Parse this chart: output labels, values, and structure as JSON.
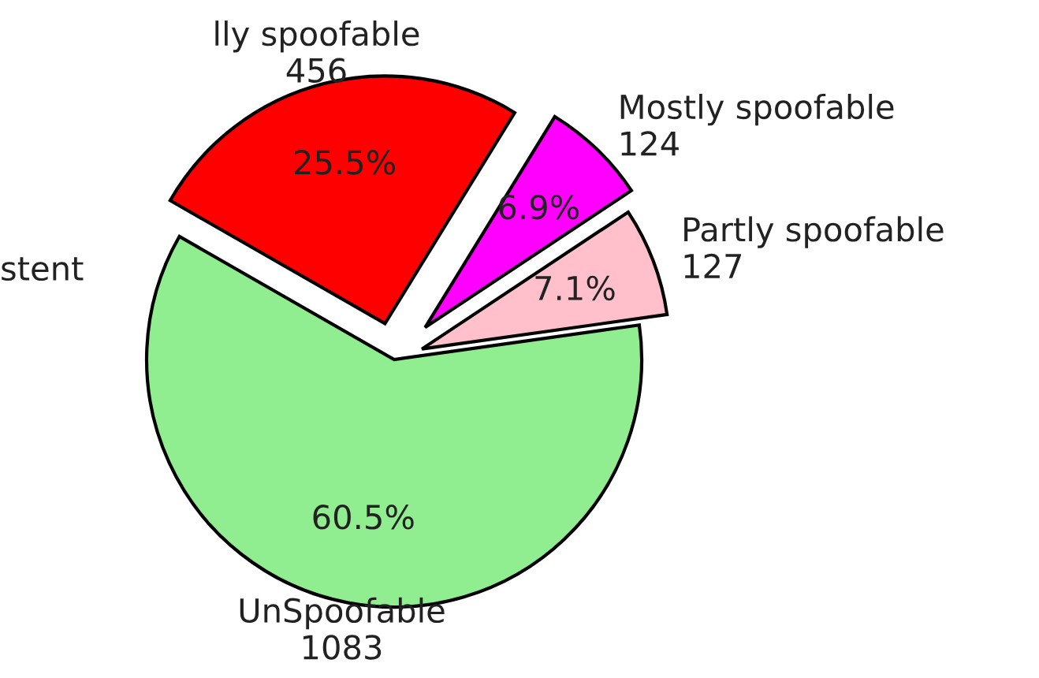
{
  "chart_data": {
    "type": "pie",
    "categories": [
      "Partly spoofable\n127",
      "Mostly spoofable\n124",
      "lly spoofable\n456",
      "UnSpoofable\n1083"
    ],
    "values": [
      7.1,
      6.9,
      25.5,
      60.5
    ],
    "colors": [
      "#ffc0cb",
      "#ff00ff",
      "#ff0000",
      "#90ee90"
    ],
    "value_labels": [
      "7.1%",
      "6.9%",
      "25.5%",
      "60.5%"
    ],
    "annotations": [
      "stent"
    ]
  }
}
